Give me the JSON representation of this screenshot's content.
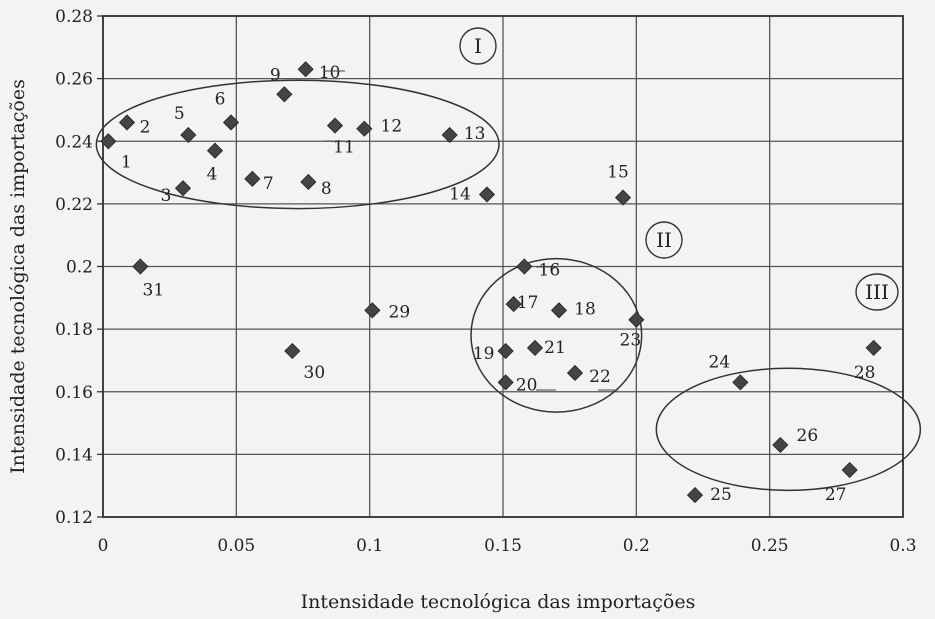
{
  "chart_data": {
    "type": "scatter",
    "xlabel": "Intensidade tecnológica das importações",
    "ylabel": "Intensidade tecnológica das importações",
    "xlim": [
      0,
      0.3
    ],
    "ylim": [
      0.12,
      0.28
    ],
    "x_ticks": [
      "0",
      "0.05",
      "0.1",
      "0.15",
      "0.2",
      "0.25",
      "0.3"
    ],
    "y_ticks": [
      "0.12",
      "0.14",
      "0.16",
      "0.18",
      "0.2",
      "0.22",
      "0.24",
      "0.26",
      "0.28"
    ],
    "grid": true,
    "points": [
      {
        "label": "1",
        "x": 0.002,
        "y": 0.24
      },
      {
        "label": "2",
        "x": 0.009,
        "y": 0.246
      },
      {
        "label": "3",
        "x": 0.03,
        "y": 0.225
      },
      {
        "label": "4",
        "x": 0.042,
        "y": 0.237
      },
      {
        "label": "5",
        "x": 0.032,
        "y": 0.242
      },
      {
        "label": "6",
        "x": 0.048,
        "y": 0.246
      },
      {
        "label": "7",
        "x": 0.056,
        "y": 0.228
      },
      {
        "label": "8",
        "x": 0.077,
        "y": 0.227
      },
      {
        "label": "9",
        "x": 0.068,
        "y": 0.255
      },
      {
        "label": "10",
        "x": 0.076,
        "y": 0.263
      },
      {
        "label": "11",
        "x": 0.087,
        "y": 0.245
      },
      {
        "label": "12",
        "x": 0.098,
        "y": 0.244
      },
      {
        "label": "13",
        "x": 0.13,
        "y": 0.242
      },
      {
        "label": "14",
        "x": 0.144,
        "y": 0.223
      },
      {
        "label": "15",
        "x": 0.195,
        "y": 0.222
      },
      {
        "label": "16",
        "x": 0.158,
        "y": 0.2
      },
      {
        "label": "17",
        "x": 0.154,
        "y": 0.188
      },
      {
        "label": "18",
        "x": 0.171,
        "y": 0.186
      },
      {
        "label": "19",
        "x": 0.151,
        "y": 0.173
      },
      {
        "label": "20",
        "x": 0.151,
        "y": 0.163
      },
      {
        "label": "21",
        "x": 0.162,
        "y": 0.174
      },
      {
        "label": "22",
        "x": 0.177,
        "y": 0.166
      },
      {
        "label": "23",
        "x": 0.2,
        "y": 0.183
      },
      {
        "label": "24",
        "x": 0.239,
        "y": 0.163
      },
      {
        "label": "25",
        "x": 0.222,
        "y": 0.127
      },
      {
        "label": "26",
        "x": 0.254,
        "y": 0.143
      },
      {
        "label": "27",
        "x": 0.28,
        "y": 0.135
      },
      {
        "label": "28",
        "x": 0.289,
        "y": 0.174
      },
      {
        "label": "29",
        "x": 0.101,
        "y": 0.186
      },
      {
        "label": "30",
        "x": 0.071,
        "y": 0.173
      },
      {
        "label": "31",
        "x": 0.014,
        "y": 0.2
      }
    ],
    "clusters": [
      {
        "label": "I",
        "cx": 0.073,
        "cy": 0.239,
        "rx": 0.0755,
        "ry": 0.0205
      },
      {
        "label": "II",
        "cx": 0.17,
        "cy": 0.178,
        "rx": 0.032,
        "ry": 0.0245
      },
      {
        "label": "III",
        "cx": 0.257,
        "cy": 0.148,
        "rx": 0.0495,
        "ry": 0.0195
      }
    ]
  }
}
